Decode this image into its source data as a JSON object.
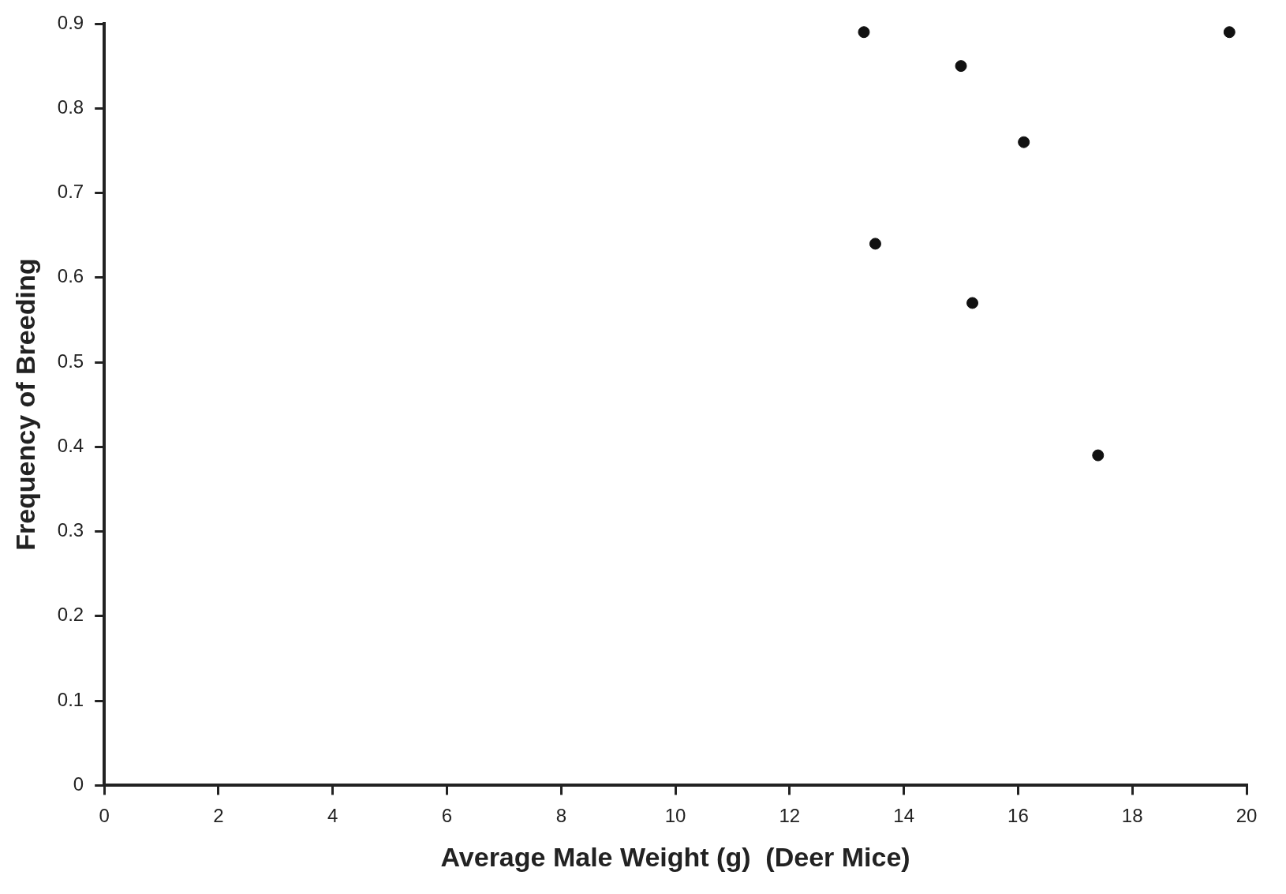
{
  "chart_data": {
    "type": "scatter",
    "xlabel": "Average Male Weight (g)  (Deer Mice)",
    "ylabel": "Frequency of Breeding",
    "x": [
      13.3,
      15.0,
      19.7,
      16.1,
      13.5,
      15.2,
      17.4
    ],
    "values": [
      0.89,
      0.85,
      0.89,
      0.76,
      0.64,
      0.57,
      0.39
    ],
    "color": "#111111",
    "marker": "circle",
    "grid": false,
    "xlim": [
      0,
      20
    ],
    "xticks": [
      0,
      2,
      4,
      6,
      8,
      10,
      12,
      14,
      16,
      18,
      20
    ],
    "ylim": [
      0,
      0.9
    ],
    "yticks": [
      0,
      0.1,
      0.2,
      0.3,
      0.4,
      0.5,
      0.6,
      0.7,
      0.8,
      0.9
    ]
  }
}
